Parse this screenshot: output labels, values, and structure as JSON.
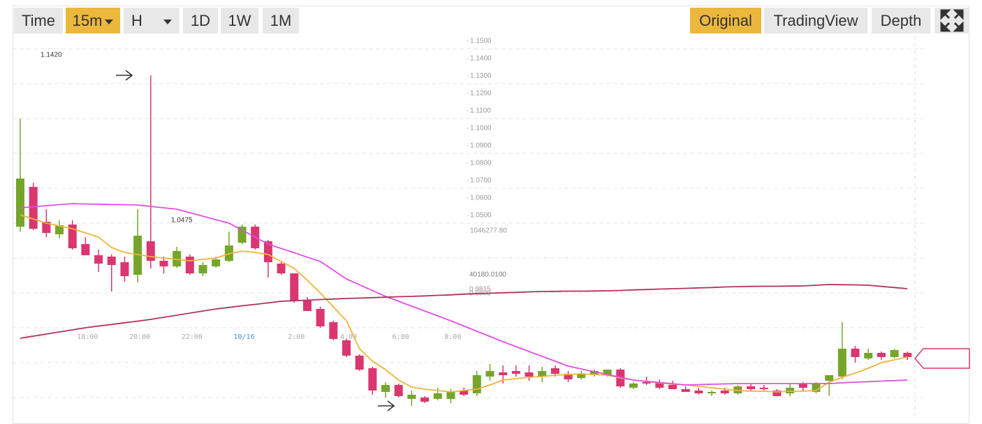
{
  "toolbar": {
    "intervals": [
      {
        "label": "Time",
        "selected": false
      },
      {
        "label": "15m",
        "selected": true,
        "dropdown": true
      },
      {
        "label": "H",
        "selected": false,
        "dropdown": true
      },
      {
        "label": "1D",
        "selected": false
      },
      {
        "label": "1W",
        "selected": false
      },
      {
        "label": "1M",
        "selected": false
      }
    ],
    "views": [
      {
        "label": "Original",
        "selected": true
      },
      {
        "label": "TradingView",
        "selected": false
      },
      {
        "label": "Depth",
        "selected": false
      }
    ]
  },
  "chart_data": {
    "type": "candlestick",
    "categories": [
      null,
      "16:00",
      null,
      null,
      null,
      "18:00",
      null,
      null,
      null,
      "20:00",
      null,
      null,
      null,
      "22:00",
      null,
      null,
      null,
      "10/16",
      null,
      null,
      null,
      "2:00",
      null,
      null,
      null,
      "4:00",
      null,
      null,
      null,
      "6:00",
      null,
      null,
      null,
      "8:00",
      null,
      null,
      null,
      null,
      null,
      null,
      null,
      null,
      null,
      null,
      null,
      null,
      null,
      null,
      null,
      null,
      null,
      null,
      null,
      null,
      null,
      null,
      null,
      null,
      null,
      null,
      null,
      null,
      null,
      null,
      null,
      null,
      null,
      null,
      null
    ],
    "open": [
      1.0436,
      1.0664,
      1.0464,
      1.0392,
      1.0448,
      1.0336,
      1.0272,
      1.0264,
      1.0232,
      1.016,
      1.0352,
      1.024,
      1.0208,
      1.0264,
      1.0168,
      1.0208,
      1.024,
      1.0344,
      1.0436,
      1.0352,
      1.0224,
      1.0168,
      1.0016,
      0.9964,
      0.9888,
      0.9784,
      0.9696,
      0.9624,
      0.9488,
      0.9528,
      0.9448,
      0.9456,
      0.9448,
      0.9448,
      0.9496,
      0.948,
      0.9576,
      0.96,
      0.9608,
      0.96,
      0.9576,
      0.9624,
      0.9592,
      0.9568,
      0.9584,
      0.9584,
      0.9616,
      0.9512,
      0.9544,
      0.9544,
      0.9528,
      0.9504,
      0.9496,
      0.948,
      0.9496,
      0.948,
      0.952,
      0.9512,
      0.9496,
      0.948,
      0.9536,
      0.9488,
      0.9552,
      0.9576,
      0.9736,
      0.968,
      0.9712,
      0.9688,
      0.9712
    ],
    "high": [
      1.1056,
      1.0688,
      1.0536,
      1.0472,
      1.0472,
      1.0376,
      1.0304,
      1.0276,
      1.0264,
      1.0536,
      1.1304,
      1.0264,
      1.032,
      1.0276,
      1.0232,
      1.0264,
      1.0408,
      1.0448,
      1.0448,
      1.036,
      1.0232,
      1.0168,
      1.0032,
      0.9976,
      0.9896,
      0.9792,
      0.9704,
      0.9632,
      0.9544,
      0.9536,
      0.9496,
      0.9464,
      0.9512,
      0.9504,
      0.9512,
      0.9608,
      0.9648,
      0.964,
      0.964,
      0.964,
      0.9632,
      0.964,
      0.9608,
      0.9608,
      0.9616,
      0.9616,
      0.9624,
      0.9544,
      0.9576,
      0.956,
      0.9552,
      0.952,
      0.9512,
      0.9496,
      0.9512,
      0.9528,
      0.9536,
      0.9528,
      0.9504,
      0.9536,
      0.9544,
      0.9544,
      0.9584,
      0.9888,
      0.9752,
      0.9736,
      0.972,
      0.9736,
      0.972
    ],
    "low": [
      1.0408,
      1.0416,
      1.0376,
      1.0368,
      1.0304,
      1.0272,
      1.0176,
      1.0064,
      1.012,
      1.0116,
      1.0196,
      1.0168,
      1.02,
      1.016,
      1.0152,
      1.02,
      1.0232,
      1.0336,
      1.0304,
      1.0144,
      1.016,
      1.0,
      0.9952,
      0.9856,
      0.9784,
      0.9688,
      0.9608,
      0.9472,
      0.9456,
      0.9456,
      0.9408,
      0.9424,
      0.944,
      0.9424,
      0.9464,
      0.9464,
      0.9552,
      0.9536,
      0.9576,
      0.9552,
      0.9544,
      0.9576,
      0.9544,
      0.956,
      0.9576,
      0.9576,
      0.9512,
      0.9504,
      0.9528,
      0.9504,
      0.9504,
      0.9488,
      0.9472,
      0.9464,
      0.9472,
      0.9472,
      0.9496,
      0.9496,
      0.9464,
      0.9464,
      0.9496,
      0.948,
      0.9464,
      0.956,
      0.9656,
      0.9672,
      0.9672,
      0.968,
      0.9672
    ],
    "close": [
      1.0712,
      1.0424,
      1.04,
      1.0444,
      1.0312,
      1.0272,
      1.0224,
      1.0216,
      1.0152,
      1.0384,
      1.024,
      1.0208,
      1.0296,
      1.0168,
      1.0216,
      1.0248,
      1.0328,
      1.0436,
      1.0312,
      1.0232,
      1.0168,
      1.0008,
      0.9952,
      0.9864,
      0.9792,
      0.9696,
      0.9616,
      0.9496,
      0.9528,
      0.9464,
      0.9472,
      0.9432,
      0.948,
      0.9488,
      0.9472,
      0.9584,
      0.9608,
      0.9584,
      0.9592,
      0.9576,
      0.9608,
      0.9592,
      0.956,
      0.9592,
      0.9608,
      0.9616,
      0.952,
      0.9536,
      0.9536,
      0.9512,
      0.9504,
      0.9488,
      0.948,
      0.9488,
      0.948,
      0.952,
      0.9504,
      0.9504,
      0.9464,
      0.9512,
      0.9512,
      0.9536,
      0.9584,
      0.9736,
      0.9688,
      0.9712,
      0.9688,
      0.9728,
      0.9688
    ],
    "up_color": "#76a52c",
    "down_color": "#da3670",
    "series": [
      {
        "color": "#f0b43a",
        "values": [
          1.0504,
          1.048,
          1.0456,
          1.044,
          1.0424,
          1.04,
          1.0376,
          1.0316,
          1.0288,
          1.0276,
          1.0264,
          1.0256,
          1.0248,
          1.024,
          1.0248,
          1.0256,
          1.028,
          1.0296,
          1.0288,
          1.0276,
          1.0236,
          1.0196,
          1.0128,
          1.0056,
          0.9976,
          0.9896,
          0.9736,
          0.9664,
          0.9616,
          0.9556,
          0.9516,
          0.9504,
          0.9496,
          0.9488,
          0.9496,
          0.9504,
          0.9528,
          0.9556,
          0.9564,
          0.9572,
          0.9576,
          0.9584,
          0.9588,
          0.9592,
          0.9588,
          0.9584,
          0.9568,
          0.9556,
          0.9548,
          0.954,
          0.9532,
          0.9528,
          0.952,
          0.9512,
          0.9504,
          0.9496,
          0.9492,
          0.9492,
          0.9488,
          0.9492,
          0.9492,
          0.9496,
          0.9544,
          0.9572,
          0.9596,
          0.9624,
          0.9656,
          0.9672,
          0.9688
        ]
      },
      {
        "color": "#e14ee6",
        "values": [
          1.0544,
          1.055,
          1.0556,
          1.0562,
          1.0568,
          1.0566,
          1.0565,
          1.0563,
          1.0562,
          1.056,
          1.0552,
          1.0544,
          1.0536,
          1.0516,
          1.0496,
          1.0476,
          1.0456,
          1.0416,
          1.0376,
          1.0336,
          1.0311,
          1.0286,
          1.0261,
          1.0236,
          1.0186,
          1.0136,
          1.0103,
          1.0069,
          1.0036,
          1.0008,
          0.998,
          0.9952,
          0.9924,
          0.9896,
          0.9866,
          0.9836,
          0.9806,
          0.9776,
          0.9748,
          0.972,
          0.9692,
          0.9664,
          0.9636,
          0.962,
          0.9604,
          0.9588,
          0.9572,
          0.9556,
          0.9549,
          0.9542,
          0.9535,
          0.9528,
          0.953,
          0.9532,
          0.9534,
          0.9536,
          0.9536,
          0.9536,
          0.9536,
          0.9536,
          0.9536,
          0.9536,
          0.9536,
          0.954,
          0.9544,
          0.9547,
          0.955,
          0.9553,
          0.9556
        ]
      },
      {
        "color": "#b3305e",
        "values": [
          0.9796,
          0.9808,
          0.982,
          0.9832,
          0.9844,
          0.9856,
          0.9866,
          0.9875,
          0.9885,
          0.9894,
          0.9904,
          0.9916,
          0.9928,
          0.994,
          0.9952,
          0.9964,
          0.9973,
          0.9982,
          0.999,
          0.9999,
          1.0008,
          1.0011,
          1.0014,
          1.0018,
          1.0021,
          1.0024,
          1.0026,
          1.0029,
          1.0031,
          1.0034,
          1.0036,
          1.0039,
          1.0042,
          1.0045,
          1.0049,
          1.0052,
          1.0054,
          1.0057,
          1.0059,
          1.0062,
          1.0064,
          1.0065,
          1.0066,
          1.0066,
          1.0067,
          1.0068,
          1.007,
          1.0073,
          1.0075,
          1.0078,
          1.008,
          1.0082,
          1.0085,
          1.0087,
          1.009,
          1.0092,
          1.0093,
          1.0094,
          1.0094,
          1.0095,
          1.0096,
          1.01,
          1.0104,
          1.0103,
          1.0102,
          1.01,
          1.0093,
          1.0087,
          1.008
        ]
      }
    ],
    "ylim": [
      0.9352,
      1.1528
    ],
    "yticks": [
      {
        "value": 1.15,
        "label": "1.1500"
      },
      {
        "value": 1.14,
        "label": "1.1400"
      },
      {
        "value": 1.13,
        "label": "1.1300"
      },
      {
        "value": 1.12,
        "label": "1.1200"
      },
      {
        "value": 1.11,
        "label": "1.1100"
      },
      {
        "value": 1.1,
        "label": "1.1000"
      },
      {
        "value": 1.09,
        "label": "1.0900"
      },
      {
        "value": 1.08,
        "label": "1.0800"
      },
      {
        "value": 1.07,
        "label": "1.0700"
      },
      {
        "value": 1.06,
        "label": "1.0600"
      },
      {
        "value": 1.05,
        "label": "1.0500"
      }
    ],
    "gridlines": [
      1.1456,
      1.1256,
      1.1056,
      1.0856,
      1.0656,
      1.0456,
      1.0256,
      1.0056,
      0.9856,
      0.9656,
      0.9456
    ],
    "annotations": [
      "1.1420",
      "1.0475",
      "1046277.80",
      "40180.0100",
      "0.9815",
      "0.9800"
    ]
  }
}
